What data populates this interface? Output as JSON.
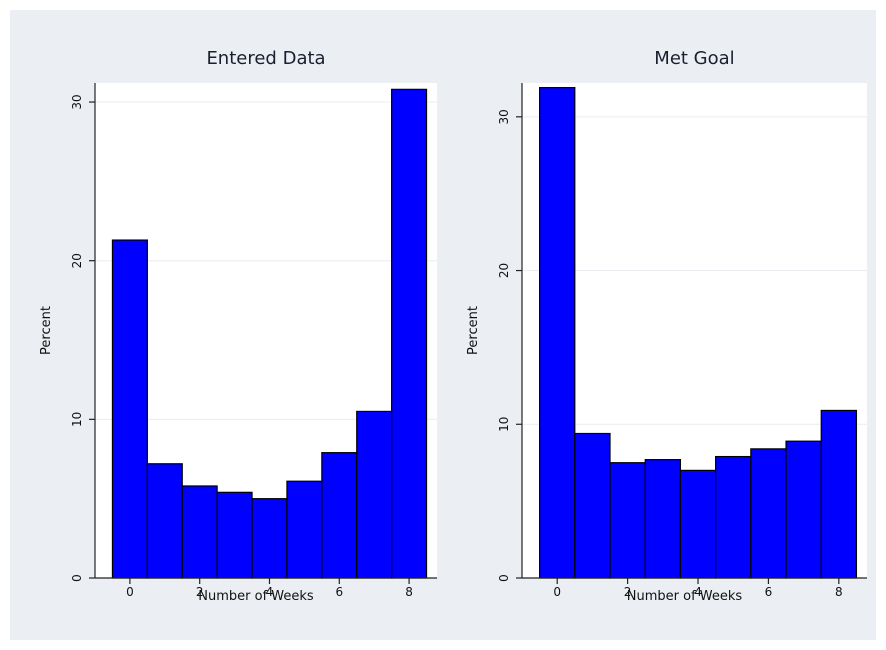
{
  "chart_data": [
    {
      "type": "bar",
      "title": "Entered Data",
      "xlabel": "Number of Weeks",
      "ylabel": "Percent",
      "categories": [
        0,
        1,
        2,
        3,
        4,
        5,
        6,
        7,
        8
      ],
      "values": [
        21.3,
        7.2,
        5.8,
        5.4,
        5.0,
        6.1,
        7.9,
        10.5,
        30.8
      ],
      "xticks": [
        "0",
        "2",
        "4",
        "6",
        "8"
      ],
      "yticks": [
        "0",
        "10",
        "20",
        "30"
      ],
      "xlim": [
        -1,
        8.8
      ],
      "ylim": [
        0,
        31.2
      ],
      "grid": true,
      "colors": {
        "bar": "#0000ff",
        "outline": "#000000",
        "background": "#ebeff3",
        "plot": "#ffffff"
      }
    },
    {
      "type": "bar",
      "title": "Met Goal",
      "xlabel": "Number of Weeks",
      "ylabel": "Percent",
      "categories": [
        0,
        1,
        2,
        3,
        4,
        5,
        6,
        7,
        8
      ],
      "values": [
        31.9,
        9.4,
        7.5,
        7.7,
        7.0,
        7.9,
        8.4,
        8.9,
        10.9
      ],
      "xticks": [
        "0",
        "2",
        "4",
        "6",
        "8"
      ],
      "yticks": [
        "0",
        "10",
        "20",
        "30"
      ],
      "xlim": [
        -1,
        8.8
      ],
      "ylim": [
        0,
        32.2
      ],
      "grid": true,
      "colors": {
        "bar": "#0000ff",
        "outline": "#000000",
        "background": "#ebeff3",
        "plot": "#ffffff"
      }
    }
  ]
}
